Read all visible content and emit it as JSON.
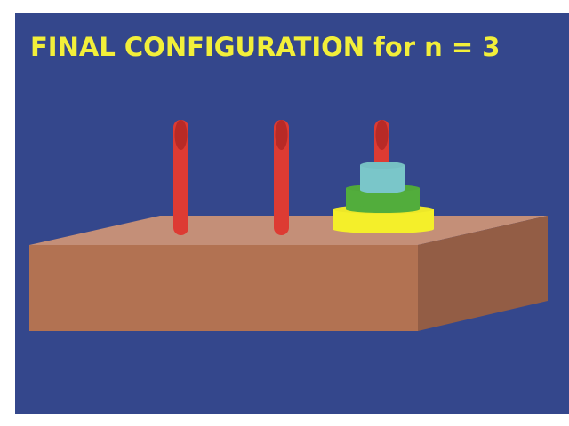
{
  "title": "FINAL CONFIGURATION for n = 3",
  "colors": {
    "page": "#ffffff",
    "background": "#34478c",
    "title_text": "#f2ef3a",
    "board_top": "#c48f78",
    "board_front": "#b27252",
    "board_side": "#935d45",
    "peg": "#dd3b33",
    "peg_top": "#b82a26",
    "disk_large": "#f4ef2a",
    "disk_medium": "#52ad3c",
    "disk_small": "#7ac6c9"
  },
  "puzzle": {
    "disk_count": 3,
    "peg_count": 3,
    "pegs": [
      {
        "name": "left-peg",
        "disks": []
      },
      {
        "name": "middle-peg",
        "disks": []
      },
      {
        "name": "right-peg",
        "disks": [
          "large",
          "medium",
          "small"
        ]
      }
    ]
  }
}
